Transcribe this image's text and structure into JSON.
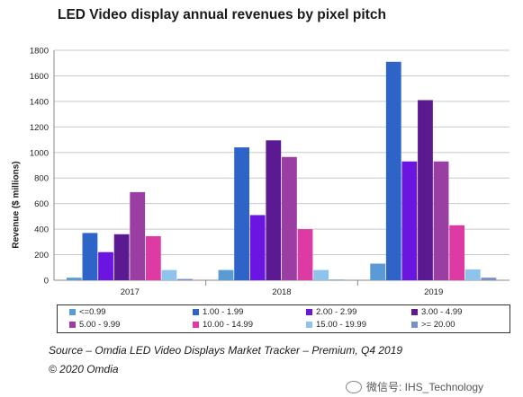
{
  "chart_data": {
    "type": "bar",
    "title": "LED Video display annual revenues by pixel pitch",
    "xlabel": "",
    "ylabel": "Revenue ($ millions)",
    "ylim": [
      0,
      1800
    ],
    "yticks": [
      0,
      200,
      400,
      600,
      800,
      1000,
      1200,
      1400,
      1600,
      1800
    ],
    "categories": [
      "2017",
      "2018",
      "2019"
    ],
    "grid": true,
    "legend_position": "bottom",
    "series": [
      {
        "name": "<=0.99",
        "color": "#5b9bd5",
        "values": [
          20,
          80,
          130
        ]
      },
      {
        "name": "1.00 - 1.99",
        "color": "#2e63c8",
        "values": [
          370,
          1040,
          1710
        ]
      },
      {
        "name": "2.00 - 2.99",
        "color": "#6a16e0",
        "values": [
          220,
          510,
          930
        ]
      },
      {
        "name": "3.00 - 4.99",
        "color": "#5b1a91",
        "values": [
          360,
          1095,
          1410
        ]
      },
      {
        "name": "5.00 - 9.99",
        "color": "#9b3ea3",
        "values": [
          690,
          965,
          930
        ]
      },
      {
        "name": "10.00 - 14.99",
        "color": "#dd3aa4",
        "values": [
          345,
          400,
          430
        ]
      },
      {
        "name": "15.00 - 19.99",
        "color": "#8ec3ee",
        "values": [
          80,
          80,
          85
        ]
      },
      {
        "name": ">= 20.00",
        "color": "#7891c2",
        "values": [
          10,
          5,
          20
        ]
      }
    ]
  },
  "source": "Source – Omdia LED Video Displays Market Tracker – Premium, Q4 2019",
  "copyright": "© 2020 Omdia",
  "watermark": "微信号: IHS_Technology"
}
